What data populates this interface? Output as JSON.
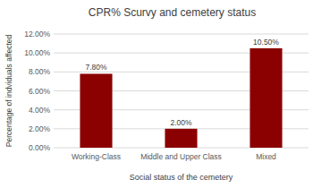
{
  "chart_data": {
    "type": "bar",
    "title": "CPR% Scurvy and cemetery status",
    "x_label": "Social status of the cemetery",
    "y_label": "Percentage of indviduals affected",
    "categories": [
      "Working-Class",
      "Middle and Upper Class",
      "Mixed"
    ],
    "values": [
      7.8,
      2,
      10.5
    ],
    "value_labels": [
      "7.80%",
      "2.00%",
      "10.50%"
    ],
    "color": "#8b0000",
    "ylim": [
      0,
      12
    ],
    "yticks": [
      {
        "value": 0,
        "label": "0.00%"
      },
      {
        "value": 2,
        "label": "2.00%"
      },
      {
        "value": 4,
        "label": "4.00%"
      },
      {
        "value": 6,
        "label": "6.00%"
      },
      {
        "value": 8,
        "label": "8.00%"
      },
      {
        "value": 10,
        "label": "10.00%"
      },
      {
        "value": 12,
        "label": "12.00%"
      }
    ],
    "grid": true,
    "data_labels": true
  }
}
